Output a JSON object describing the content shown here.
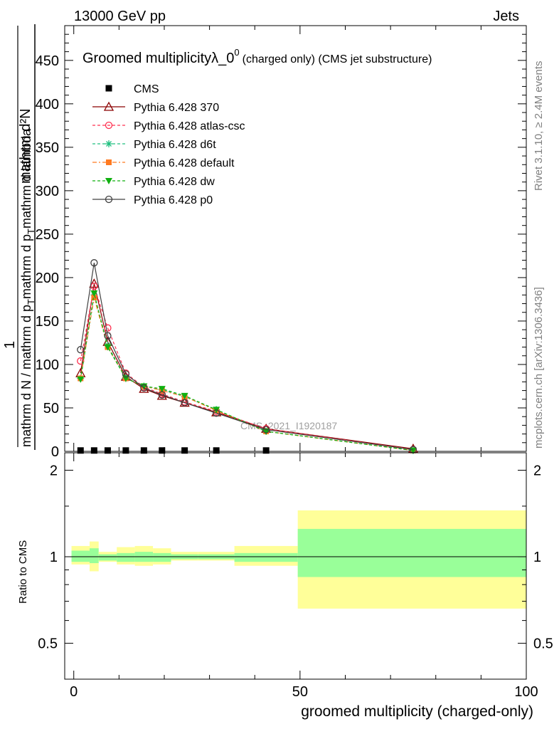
{
  "header": {
    "left": "13000 GeV pp",
    "right": "Jets"
  },
  "side_text": {
    "rivet": "Rivet 3.1.10, ≥ 2.4M events",
    "mcplots": "mcplots.cern.ch [arXiv:1306.3436]"
  },
  "chart_data": [
    {
      "type": "line",
      "title_main": "Groomed multiplicityλ_0",
      "title_sup": "0",
      "title_tail": "(charged only) (CMS jet substructure)",
      "watermark": "CMS_2021_I1920187",
      "ylabel_numerator": "mathrm d²N",
      "ylabel_prefix": "1",
      "ylabel_denominator": "mathrm d N / mathrm d p",
      "ylabel_sub": "T",
      "ylabel_part2": "mathrm d p",
      "ylabel_sub2": "T",
      "ylabel_part3": "mathrm d lambda",
      "ylim": [
        0,
        490
      ],
      "xlim": [
        -2,
        100
      ],
      "yticks": [
        0,
        50,
        100,
        150,
        200,
        250,
        300,
        350,
        400,
        450
      ],
      "ytick_labels": [
        "0",
        "50",
        "100",
        "150",
        "200",
        "250",
        "300",
        "350",
        "400",
        "450"
      ],
      "legend_position": "top-left",
      "cms": {
        "name": "CMS",
        "x": [
          1.5,
          4.5,
          7.5,
          11.5,
          15.5,
          19.5,
          24.5,
          31.5,
          42.5
        ],
        "values": [
          1,
          1,
          1,
          1,
          1,
          1,
          1,
          1,
          1
        ]
      },
      "series": [
        {
          "name": "Pythia 6.428 370",
          "color": "#8b0000",
          "marker": "triangle-open",
          "dash": "",
          "x": [
            1.5,
            4.5,
            7.5,
            11.5,
            15.5,
            19.5,
            24.5,
            31.5,
            42.5,
            75
          ],
          "values": [
            90,
            193,
            126,
            86,
            72,
            64,
            56,
            45,
            26,
            3
          ]
        },
        {
          "name": "Pythia 6.428 atlas-csc",
          "color": "#ff3050",
          "marker": "circle-open",
          "dash": "4,3",
          "x": [
            1.5,
            4.5,
            7.5,
            11.5,
            15.5,
            19.5,
            24.5,
            31.5,
            42.5,
            75
          ],
          "values": [
            104,
            190,
            142,
            90,
            74,
            66,
            57,
            46,
            26,
            2
          ]
        },
        {
          "name": "Pythia 6.428 d6t",
          "color": "#20c080",
          "marker": "star",
          "dash": "4,3",
          "x": [
            1.5,
            4.5,
            7.5,
            11.5,
            15.5,
            19.5,
            24.5,
            31.5,
            42.5,
            75
          ],
          "values": [
            84,
            180,
            122,
            84,
            75,
            71,
            63,
            48,
            23,
            1
          ]
        },
        {
          "name": "Pythia 6.428 default",
          "color": "#ff7a20",
          "marker": "square",
          "dash": "6,3,2,3",
          "x": [
            1.5,
            4.5,
            7.5,
            11.5,
            15.5,
            19.5,
            24.5,
            31.5,
            42.5,
            75
          ],
          "values": [
            84,
            177,
            120,
            84,
            75,
            70,
            63,
            47,
            23,
            1
          ]
        },
        {
          "name": "Pythia 6.428 dw",
          "color": "#10b010",
          "marker": "triangle-down",
          "dash": "4,3",
          "x": [
            1.5,
            4.5,
            7.5,
            11.5,
            15.5,
            19.5,
            24.5,
            31.5,
            42.5,
            75
          ],
          "values": [
            83,
            182,
            120,
            84,
            75,
            72,
            64,
            48,
            23,
            1
          ]
        },
        {
          "name": "Pythia 6.428 p0",
          "color": "#404040",
          "marker": "circle-open",
          "dash": "",
          "x": [
            1.5,
            4.5,
            7.5,
            11.5,
            15.5,
            19.5,
            24.5,
            31.5,
            42.5,
            75
          ],
          "values": [
            117,
            217,
            133,
            89,
            73,
            65,
            56,
            44,
            25,
            2
          ]
        }
      ]
    },
    {
      "type": "area",
      "ylabel": "Ratio to CMS",
      "xlabel": "groomed multiplicity (charged-only)",
      "ylim": [
        0.375,
        2.3
      ],
      "xlim": [
        -2,
        100
      ],
      "yticks": [
        0.5,
        1,
        2
      ],
      "ytick_labels": [
        "0.5",
        "1",
        "2"
      ],
      "xticks": [
        0,
        50,
        100
      ],
      "xtick_labels": [
        "0",
        "50",
        "100"
      ],
      "bands": [
        {
          "x0": -0.5,
          "x1": 3.5,
          "stat_lo": 0.96,
          "stat_hi": 1.05,
          "tot_lo": 0.94,
          "tot_hi": 1.09
        },
        {
          "x0": 3.5,
          "x1": 5.5,
          "stat_lo": 0.95,
          "stat_hi": 1.07,
          "tot_lo": 0.89,
          "tot_hi": 1.13
        },
        {
          "x0": 5.5,
          "x1": 9.5,
          "stat_lo": 0.97,
          "stat_hi": 1.02,
          "tot_lo": 0.96,
          "tot_hi": 1.04
        },
        {
          "x0": 9.5,
          "x1": 13.5,
          "stat_lo": 0.96,
          "stat_hi": 1.03,
          "tot_lo": 0.94,
          "tot_hi": 1.08
        },
        {
          "x0": 13.5,
          "x1": 17.5,
          "stat_lo": 0.96,
          "stat_hi": 1.04,
          "tot_lo": 0.93,
          "tot_hi": 1.09
        },
        {
          "x0": 17.5,
          "x1": 21.5,
          "stat_lo": 0.96,
          "stat_hi": 1.03,
          "tot_lo": 0.94,
          "tot_hi": 1.07
        },
        {
          "x0": 21.5,
          "x1": 27.5,
          "stat_lo": 0.98,
          "stat_hi": 1.02,
          "tot_lo": 0.97,
          "tot_hi": 1.04
        },
        {
          "x0": 27.5,
          "x1": 35.5,
          "stat_lo": 0.98,
          "stat_hi": 1.02,
          "tot_lo": 0.97,
          "tot_hi": 1.04
        },
        {
          "x0": 35.5,
          "x1": 49.5,
          "stat_lo": 0.96,
          "stat_hi": 1.03,
          "tot_lo": 0.93,
          "tot_hi": 1.09
        },
        {
          "x0": 49.5,
          "x1": 100,
          "stat_lo": 0.85,
          "stat_hi": 1.25,
          "tot_lo": 0.66,
          "tot_hi": 1.45
        }
      ],
      "band_colors": {
        "stat": "#99ff99",
        "total": "#ffff99"
      }
    }
  ]
}
